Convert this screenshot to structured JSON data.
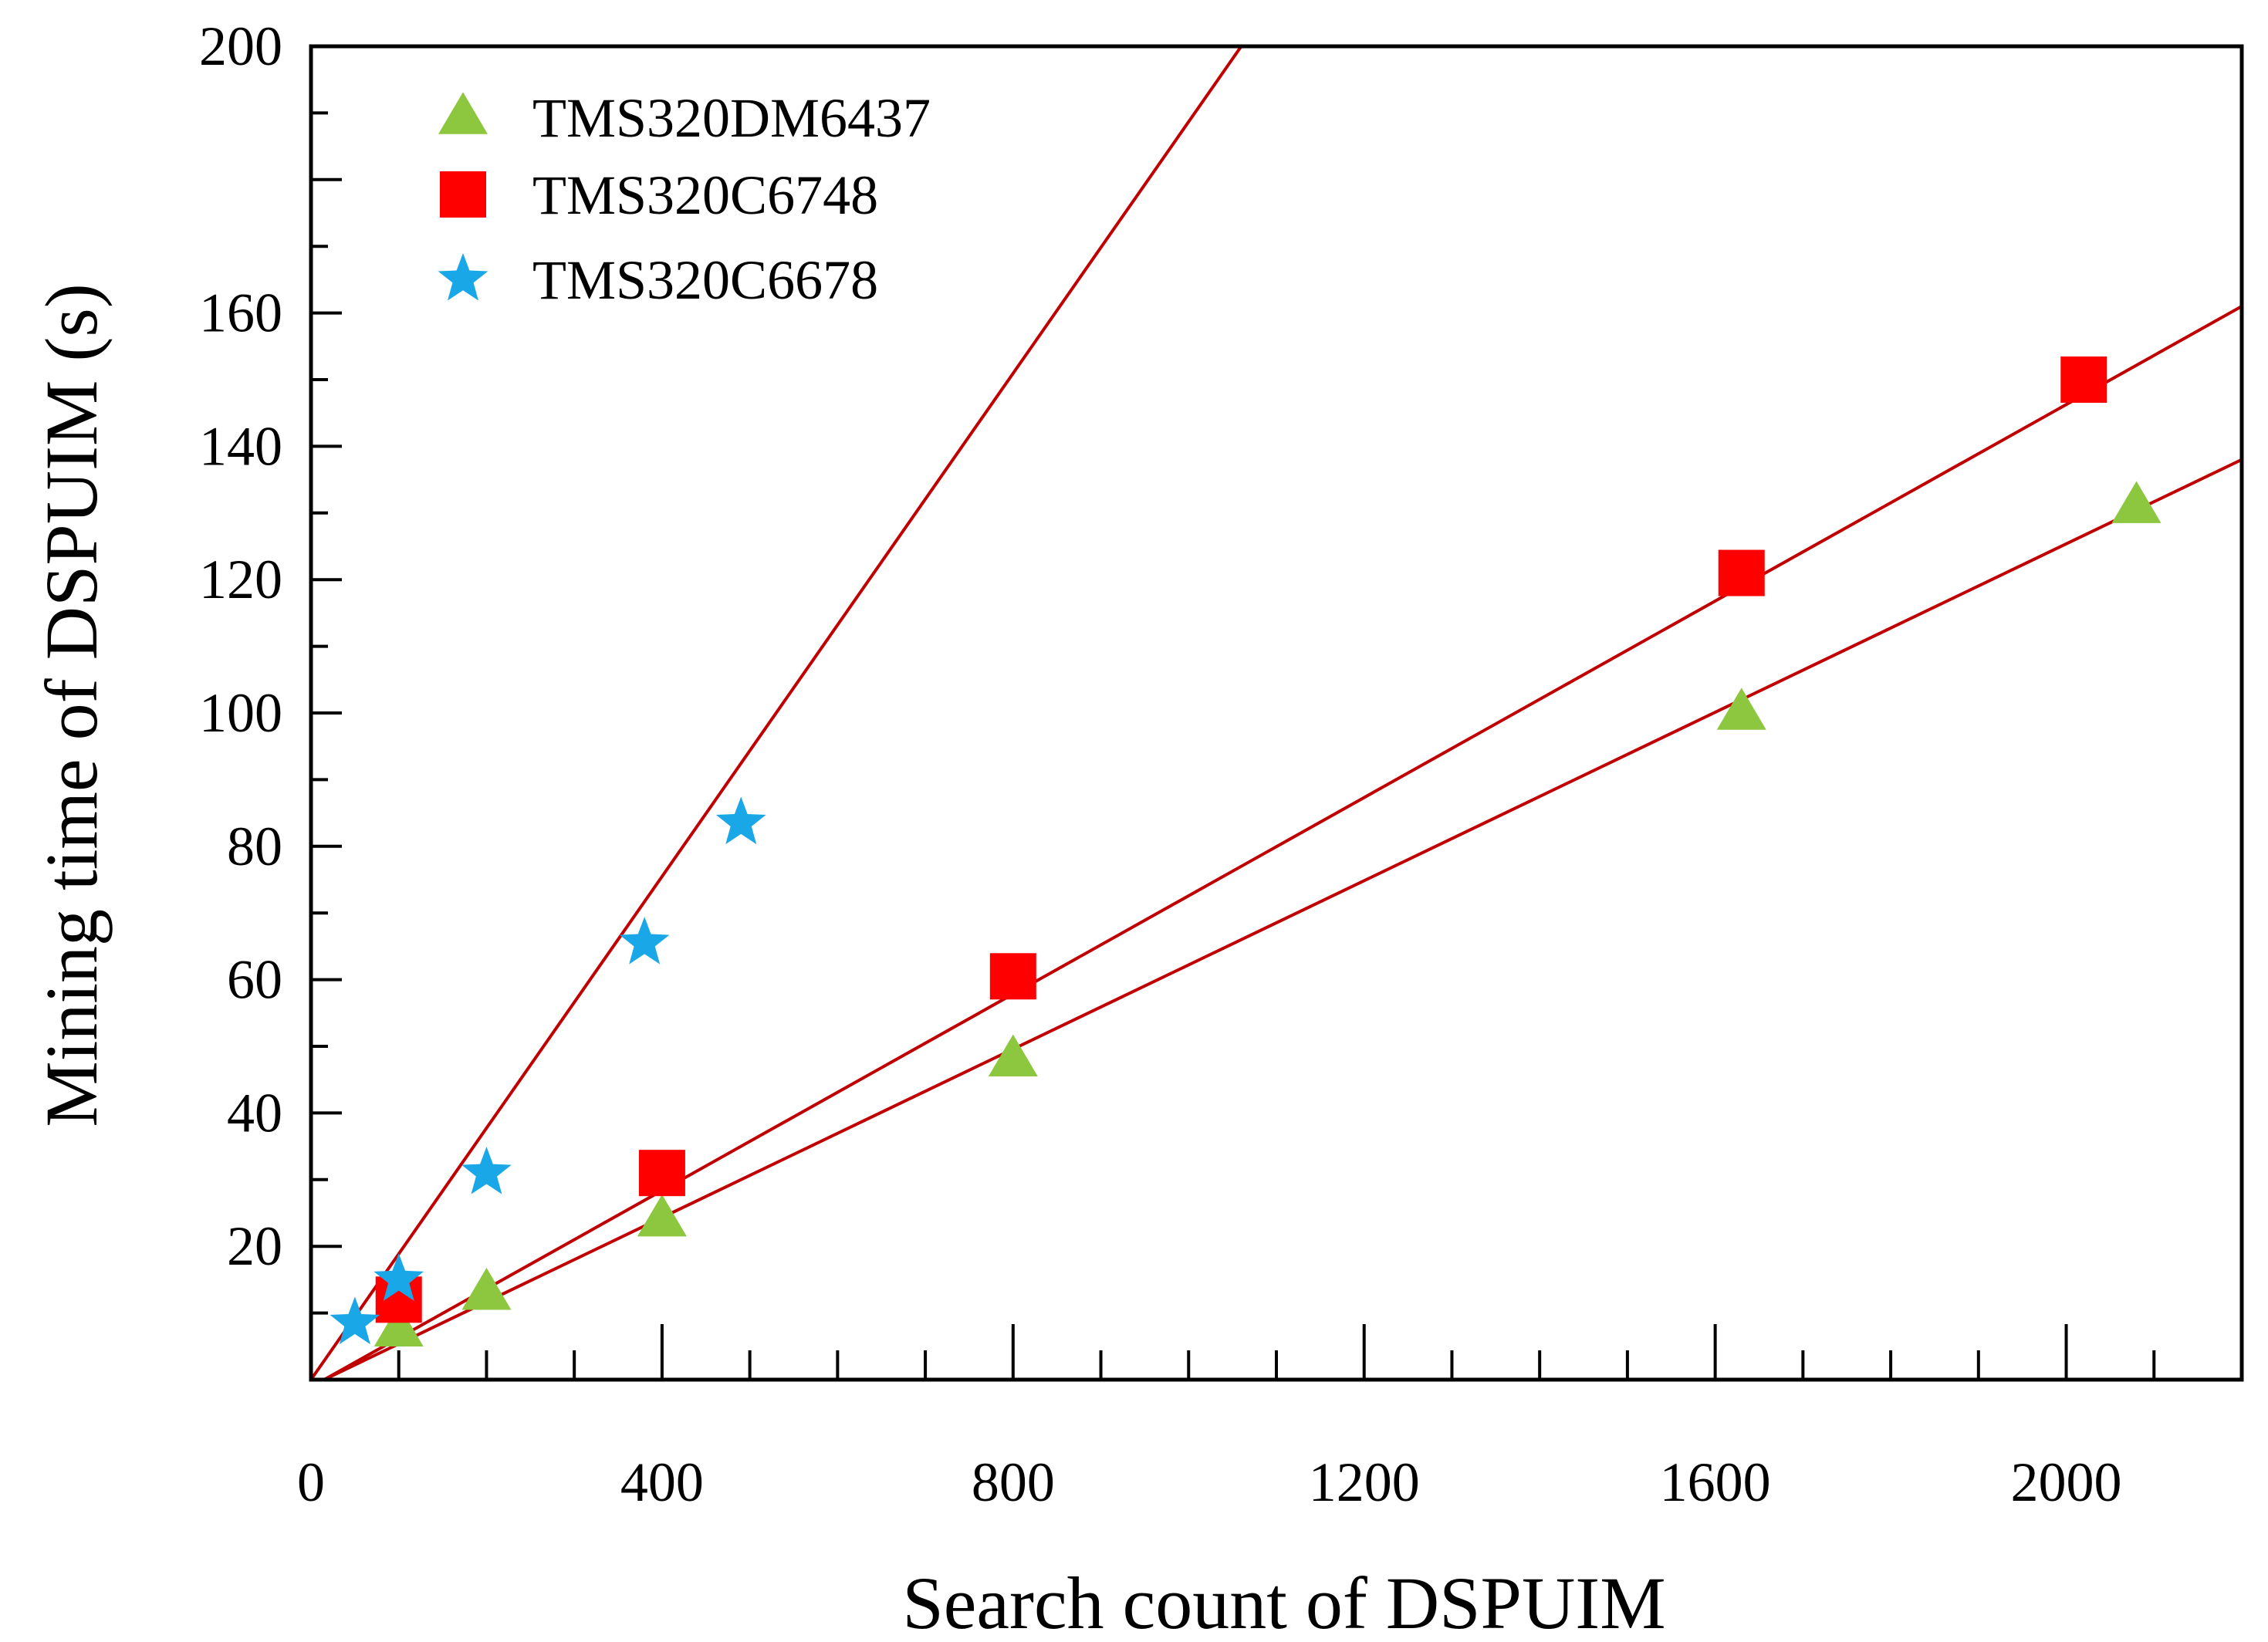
{
  "chart_data": {
    "type": "scatter",
    "title": "",
    "xlabel": "Search count of DSPUIM",
    "ylabel": "Mining time of DSPUIM (s)",
    "xlim": [
      0,
      2200
    ],
    "ylim": [
      0,
      200
    ],
    "x_ticks": [
      0,
      400,
      800,
      1200,
      1600,
      2000
    ],
    "x_tick_labels": [
      "0",
      "400",
      "800",
      "1200",
      "1600",
      "2000"
    ],
    "y_ticks": [
      20,
      40,
      60,
      80,
      100,
      120,
      140,
      160,
      200
    ],
    "y_tick_labels": [
      "20",
      "40",
      "60",
      "80",
      "100",
      "120",
      "140",
      "160",
      "200"
    ],
    "grid": false,
    "legend_position": "top-left",
    "series": [
      {
        "name": "TMS320DM6437",
        "marker": "triangle",
        "color": "#8dc63f",
        "points": [
          [
            100,
            7.5
          ],
          [
            200,
            13
          ],
          [
            400,
            24
          ],
          [
            800,
            48
          ],
          [
            1630,
            100
          ],
          [
            2080,
            131
          ]
        ],
        "fit_line": [
          [
            15,
            0
          ],
          [
            2200,
            138
          ]
        ]
      },
      {
        "name": "TMS320C6748",
        "marker": "square",
        "color": "#ff0000",
        "points": [
          [
            100,
            12
          ],
          [
            400,
            31
          ],
          [
            800,
            60.5
          ],
          [
            1630,
            121
          ],
          [
            2020,
            150
          ]
        ],
        "fit_line": [
          [
            15,
            0
          ],
          [
            2200,
            161
          ]
        ]
      },
      {
        "name": "TMS320C6678",
        "marker": "star",
        "color": "#1aa7e8",
        "points": [
          [
            50,
            8.5
          ],
          [
            100,
            15
          ],
          [
            200,
            31
          ],
          [
            380,
            65.5
          ],
          [
            490,
            83.5
          ]
        ],
        "fit_line": [
          [
            0,
            0
          ],
          [
            1060,
            200
          ]
        ]
      }
    ],
    "fit_line_color": "#c00000"
  }
}
